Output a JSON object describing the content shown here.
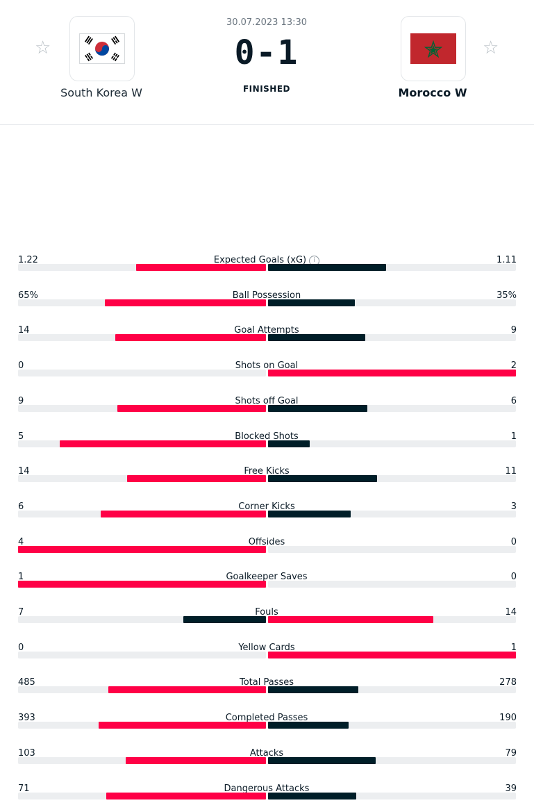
{
  "match": {
    "datetime": "30.07.2023 13:30",
    "score": "0-1",
    "status": "FINISHED",
    "home": {
      "name": "South Korea W"
    },
    "away": {
      "name": "Morocco W"
    }
  },
  "colors": {
    "leader": "#ff0046",
    "trailer": "#001e28",
    "track": "#eceef0"
  },
  "icons": {
    "favorite": "star-outline-icon",
    "info": "info-icon"
  },
  "stats": [
    {
      "name": "Expected Goals (xG)",
      "home": "1.22",
      "away": "1.11",
      "hv": 1.22,
      "av": 1.11,
      "info": true
    },
    {
      "name": "Ball Possession",
      "home": "65%",
      "away": "35%",
      "hv": 65,
      "av": 35
    },
    {
      "name": "Goal Attempts",
      "home": "14",
      "away": "9",
      "hv": 14,
      "av": 9
    },
    {
      "name": "Shots on Goal",
      "home": "0",
      "away": "2",
      "hv": 0,
      "av": 2
    },
    {
      "name": "Shots off Goal",
      "home": "9",
      "away": "6",
      "hv": 9,
      "av": 6
    },
    {
      "name": "Blocked Shots",
      "home": "5",
      "away": "1",
      "hv": 5,
      "av": 1
    },
    {
      "name": "Free Kicks",
      "home": "14",
      "away": "11",
      "hv": 14,
      "av": 11
    },
    {
      "name": "Corner Kicks",
      "home": "6",
      "away": "3",
      "hv": 6,
      "av": 3
    },
    {
      "name": "Offsides",
      "home": "4",
      "away": "0",
      "hv": 4,
      "av": 0
    },
    {
      "name": "Goalkeeper Saves",
      "home": "1",
      "away": "0",
      "hv": 1,
      "av": 0
    },
    {
      "name": "Fouls",
      "home": "7",
      "away": "14",
      "hv": 7,
      "av": 14
    },
    {
      "name": "Yellow Cards",
      "home": "0",
      "away": "1",
      "hv": 0,
      "av": 1
    },
    {
      "name": "Total Passes",
      "home": "485",
      "away": "278",
      "hv": 485,
      "av": 278
    },
    {
      "name": "Completed Passes",
      "home": "393",
      "away": "190",
      "hv": 393,
      "av": 190
    },
    {
      "name": "Attacks",
      "home": "103",
      "away": "79",
      "hv": 103,
      "av": 79
    },
    {
      "name": "Dangerous Attacks",
      "home": "71",
      "away": "39",
      "hv": 71,
      "av": 39
    }
  ]
}
